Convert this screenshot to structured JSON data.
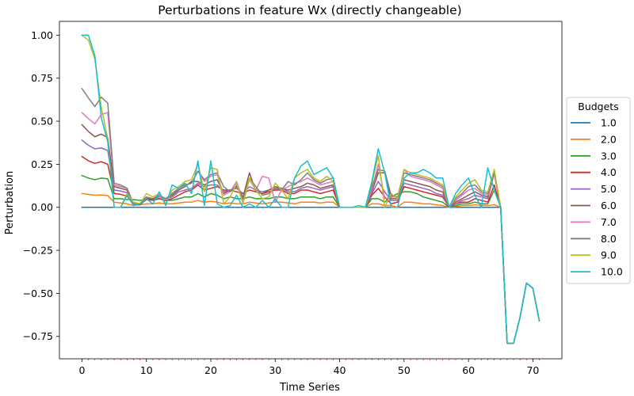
{
  "chart_data": {
    "type": "line",
    "title": "Perturbations in feature Wx (directly changeable)",
    "xlabel": "Time Series",
    "ylabel": "Perturbation",
    "xlim": [
      -3.5,
      74.5
    ],
    "ylim": [
      -0.88,
      1.08
    ],
    "xticks": [
      0,
      10,
      20,
      30,
      40,
      50,
      60,
      70
    ],
    "xtick_labels": [
      "0",
      "10",
      "20",
      "30",
      "40",
      "50",
      "60",
      "70"
    ],
    "yticks": [
      1.0,
      0.75,
      0.5,
      0.25,
      0.0,
      -0.25,
      -0.5,
      -0.75
    ],
    "ytick_labels": [
      "1.00",
      "0.75",
      "0.50",
      "0.25",
      "0.00",
      "−0.25",
      "−0.50",
      "−0.75"
    ],
    "grid": false,
    "legend": {
      "title": "Budgets",
      "placement": "outside-right"
    },
    "x": [
      0,
      1,
      2,
      3,
      4,
      5,
      6,
      7,
      8,
      9,
      10,
      11,
      12,
      13,
      14,
      15,
      16,
      17,
      18,
      19,
      20,
      21,
      22,
      23,
      24,
      25,
      26,
      27,
      28,
      29,
      30,
      31,
      32,
      33,
      34,
      35,
      36,
      37,
      38,
      39,
      40,
      41,
      42,
      43,
      44,
      45,
      46,
      47,
      48,
      49,
      50,
      51,
      52,
      53,
      54,
      55,
      56,
      57,
      58,
      59,
      60,
      61,
      62,
      63,
      64,
      65,
      66,
      67,
      68,
      69,
      70,
      71
    ],
    "series": [
      {
        "name": "1.0",
        "color": "#1f77b4",
        "values": [
          0,
          0,
          0,
          0,
          0,
          0,
          0,
          0,
          0,
          0,
          0,
          0,
          0,
          0,
          0,
          0,
          0,
          0,
          0,
          0,
          0,
          0,
          0,
          0,
          0,
          0,
          0,
          0,
          0,
          0,
          0,
          0,
          0,
          0,
          0,
          0,
          0,
          0,
          0,
          0,
          0,
          0,
          0,
          0,
          0,
          0,
          0,
          0,
          0,
          0,
          0,
          0,
          0,
          0,
          0,
          0,
          0,
          0,
          0,
          0,
          0,
          0,
          0,
          0,
          0,
          0,
          -0.79,
          -0.79,
          -0.64,
          -0.44,
          -0.47,
          -0.66
        ]
      },
      {
        "name": "2.0",
        "color": "#ff7f0e",
        "values": [
          0.08,
          0.075,
          0.07,
          0.072,
          0.068,
          0.03,
          0.025,
          0.02,
          0.01,
          0.015,
          0.02,
          0.02,
          0.025,
          0.02,
          0.02,
          0.025,
          0.03,
          0.03,
          0.04,
          0.03,
          0.035,
          0.03,
          0.02,
          0.025,
          0.02,
          0.02,
          0.03,
          0.025,
          0.02,
          0.025,
          0.03,
          0.03,
          0.025,
          0.02,
          0.03,
          0.03,
          0.03,
          0.025,
          0.03,
          0.03,
          0.0,
          0.0,
          0.0,
          0.0,
          0.0,
          0.02,
          0.02,
          0.01,
          0.01,
          0.0,
          0.03,
          0.03,
          0.025,
          0.02,
          0.02,
          0.015,
          0.01,
          0.0,
          0.005,
          0.01,
          0.01,
          0.015,
          0.01,
          0.01,
          0.015,
          0.0,
          -0.79,
          -0.79,
          -0.64,
          -0.44,
          -0.47,
          -0.66
        ]
      },
      {
        "name": "3.0",
        "color": "#2ca02c",
        "values": [
          0.185,
          0.17,
          0.16,
          0.17,
          0.165,
          0.05,
          0.05,
          0.045,
          0.045,
          0.04,
          0.045,
          0.04,
          0.05,
          0.04,
          0.04,
          0.05,
          0.06,
          0.06,
          0.08,
          0.06,
          0.08,
          0.07,
          0.05,
          0.06,
          0.05,
          0.05,
          0.06,
          0.05,
          0.05,
          0.05,
          0.06,
          0.06,
          0.05,
          0.05,
          0.06,
          0.06,
          0.06,
          0.05,
          0.06,
          0.06,
          0.0,
          0.0,
          0.0,
          0.0,
          0.0,
          0.05,
          0.05,
          0.03,
          0.06,
          0.08,
          0.09,
          0.09,
          0.08,
          0.06,
          0.05,
          0.04,
          0.03,
          0.0,
          0.01,
          0.02,
          0.02,
          0.03,
          0.02,
          0.02,
          0.1,
          0.0,
          -0.79,
          -0.79,
          -0.64,
          -0.44,
          -0.47,
          -0.66
        ]
      },
      {
        "name": "4.0",
        "color": "#d62728",
        "values": [
          0.295,
          0.27,
          0.255,
          0.265,
          0.25,
          0.08,
          0.075,
          0.065,
          0.02,
          0.015,
          0.045,
          0.045,
          0.05,
          0.04,
          0.05,
          0.07,
          0.09,
          0.1,
          0.13,
          0.1,
          0.11,
          0.12,
          0.1,
          0.1,
          0.09,
          0.08,
          0.1,
          0.09,
          0.08,
          0.09,
          0.1,
          0.1,
          0.08,
          0.08,
          0.1,
          0.1,
          0.09,
          0.08,
          0.09,
          0.1,
          0.0,
          0.0,
          0.0,
          0.0,
          0.0,
          0.07,
          0.11,
          0.06,
          0.02,
          0.03,
          0.12,
          0.11,
          0.1,
          0.09,
          0.08,
          0.07,
          0.06,
          0.0,
          0.02,
          0.03,
          0.03,
          0.05,
          0.04,
          0.03,
          0.13,
          0.0,
          -0.79,
          -0.79,
          -0.64,
          -0.44,
          -0.47,
          -0.66
        ]
      },
      {
        "name": "5.0",
        "color": "#9467bd",
        "values": [
          0.39,
          0.36,
          0.34,
          0.345,
          0.33,
          0.1,
          0.095,
          0.085,
          0.02,
          0.015,
          0.05,
          0.05,
          0.06,
          0.05,
          0.06,
          0.09,
          0.1,
          0.11,
          0.14,
          0.12,
          0.13,
          0.13,
          0.09,
          0.1,
          0.11,
          0.08,
          0.12,
          0.1,
          0.09,
          0.1,
          0.11,
          0.11,
          0.09,
          0.09,
          0.11,
          0.12,
          0.11,
          0.1,
          0.11,
          0.12,
          0.0,
          0.0,
          0.0,
          0.0,
          0.0,
          0.08,
          0.15,
          0.09,
          0.04,
          0.04,
          0.14,
          0.13,
          0.12,
          0.11,
          0.1,
          0.08,
          0.07,
          0.0,
          0.02,
          0.04,
          0.05,
          0.07,
          0.06,
          0.05,
          0.2,
          0.0,
          -0.79,
          -0.79,
          -0.64,
          -0.44,
          -0.47,
          -0.66
        ]
      },
      {
        "name": "6.0",
        "color": "#8c564b",
        "values": [
          0.48,
          0.44,
          0.41,
          0.425,
          0.405,
          0.12,
          0.11,
          0.1,
          0.02,
          0.015,
          0.05,
          0.05,
          0.07,
          0.05,
          0.07,
          0.1,
          0.12,
          0.15,
          0.15,
          0.13,
          0.15,
          0.16,
          0.08,
          0.1,
          0.12,
          0.06,
          0.2,
          0.09,
          0.08,
          0.1,
          0.12,
          0.11,
          0.1,
          0.11,
          0.12,
          0.14,
          0.13,
          0.11,
          0.12,
          0.13,
          0.0,
          0.0,
          0.0,
          0.0,
          0.0,
          0.09,
          0.2,
          0.2,
          0.05,
          0.05,
          0.16,
          0.15,
          0.14,
          0.13,
          0.12,
          0.1,
          0.09,
          0.0,
          0.03,
          0.05,
          0.07,
          0.09,
          0.07,
          0.06,
          0.2,
          0.0,
          -0.79,
          -0.79,
          -0.64,
          -0.44,
          -0.47,
          -0.66
        ]
      },
      {
        "name": "7.0",
        "color": "#e377c2",
        "values": [
          0.55,
          0.515,
          0.485,
          0.54,
          0.55,
          0.13,
          0.12,
          0.11,
          0.02,
          0.02,
          0.06,
          0.05,
          0.07,
          0.05,
          0.08,
          0.11,
          0.13,
          0.14,
          0.21,
          0.15,
          0.18,
          0.19,
          0.07,
          0.09,
          0.15,
          0.04,
          0.16,
          0.1,
          0.18,
          0.17,
          0.03,
          0.1,
          0.12,
          0.14,
          0.15,
          0.17,
          0.15,
          0.13,
          0.14,
          0.15,
          0.0,
          0.0,
          0.0,
          0.0,
          0.0,
          0.1,
          0.25,
          0.05,
          0.06,
          0.06,
          0.22,
          0.18,
          0.17,
          0.16,
          0.15,
          0.13,
          0.11,
          0.0,
          0.04,
          0.07,
          0.1,
          0.11,
          0.08,
          0.07,
          0.2,
          0.0,
          -0.79,
          -0.79,
          -0.64,
          -0.44,
          -0.47,
          -0.66
        ]
      },
      {
        "name": "8.0",
        "color": "#7f7f7f",
        "values": [
          0.69,
          0.635,
          0.585,
          0.64,
          0.605,
          0.14,
          0.13,
          0.11,
          0.02,
          0.02,
          0.06,
          0.05,
          0.07,
          0.05,
          0.08,
          0.11,
          0.13,
          0.14,
          0.21,
          0.16,
          0.19,
          0.2,
          0.12,
          0.09,
          0.13,
          0.05,
          0.17,
          0.12,
          0.07,
          0.08,
          0.11,
          0.1,
          0.15,
          0.13,
          0.16,
          0.2,
          0.16,
          0.14,
          0.16,
          0.17,
          0.0,
          0.0,
          0.0,
          0.0,
          0.0,
          0.12,
          0.22,
          0.21,
          0.07,
          0.06,
          0.2,
          0.19,
          0.18,
          0.17,
          0.16,
          0.14,
          0.12,
          0.0,
          0.05,
          0.08,
          0.12,
          0.13,
          0.09,
          0.08,
          0.2,
          0.0,
          -0.79,
          -0.79,
          -0.64,
          -0.44,
          -0.47,
          -0.66
        ]
      },
      {
        "name": "9.0",
        "color": "#bcbd22",
        "values": [
          1.0,
          0.97,
          0.86,
          0.58,
          0.4,
          0.0,
          0.0,
          0.08,
          0.03,
          0.02,
          0.08,
          0.06,
          0.08,
          0.02,
          0.1,
          0.12,
          0.15,
          0.16,
          0.25,
          0.09,
          0.23,
          0.22,
          0.02,
          0.06,
          0.14,
          0.02,
          0.17,
          0.1,
          0.05,
          0.06,
          0.14,
          0.1,
          0.05,
          0.17,
          0.2,
          0.22,
          0.17,
          0.15,
          0.18,
          0.15,
          0.0,
          0.0,
          0.0,
          0.0,
          0.0,
          0.14,
          0.3,
          0.0,
          0.08,
          0.05,
          0.22,
          0.2,
          0.19,
          0.18,
          0.17,
          0.15,
          0.13,
          0.0,
          0.06,
          0.1,
          0.14,
          0.16,
          0.1,
          0.09,
          0.22,
          0.0,
          -0.79,
          -0.79,
          -0.64,
          -0.44,
          -0.47,
          -0.66
        ]
      },
      {
        "name": "10.0",
        "color": "#17becf",
        "values": [
          1.0,
          1.0,
          0.88,
          0.52,
          0.38,
          0.0,
          0.0,
          0.07,
          0.01,
          0.02,
          0.05,
          0.02,
          0.09,
          0.01,
          0.13,
          0.11,
          0.14,
          0.08,
          0.27,
          0.01,
          0.27,
          0.02,
          0.0,
          0.01,
          0.07,
          0.0,
          0.02,
          0.0,
          0.04,
          0.0,
          0.05,
          0.0,
          0.0,
          0.17,
          0.24,
          0.27,
          0.19,
          0.21,
          0.23,
          0.17,
          0.0,
          0.0,
          0.0,
          0.01,
          0.0,
          0.15,
          0.34,
          0.2,
          0.0,
          0.0,
          0.17,
          0.2,
          0.2,
          0.22,
          0.2,
          0.17,
          0.17,
          0.0,
          0.08,
          0.13,
          0.17,
          0.07,
          0.0,
          0.23,
          0.1,
          0.0,
          -0.79,
          -0.79,
          -0.64,
          -0.44,
          -0.47,
          -0.66
        ]
      }
    ]
  }
}
